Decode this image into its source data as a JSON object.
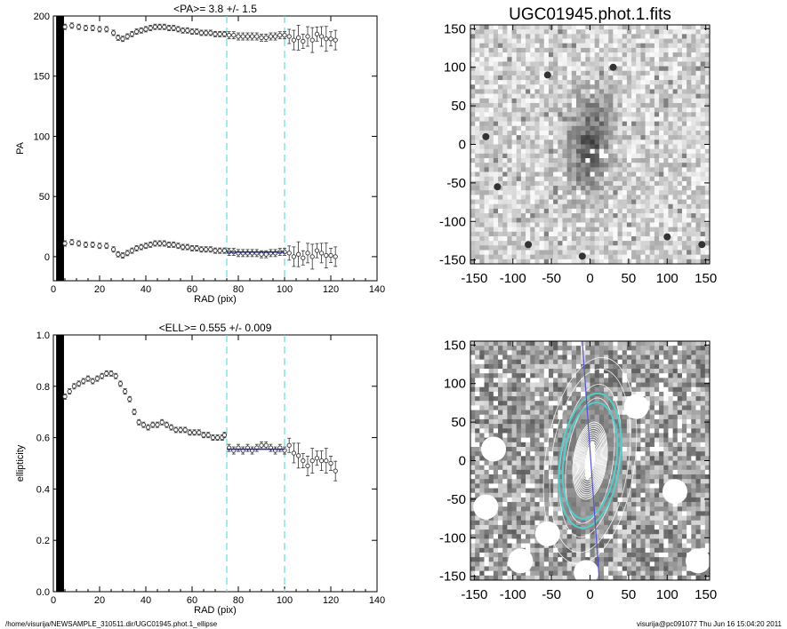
{
  "footer": {
    "path": "/home/visurija/NEWSAMPLE_310511.dir/UGC01945.phot.1_ellipse",
    "stamp": "visurija@pc091077  Thu Jun 16 15:04:20 2011"
  },
  "colors": {
    "fit_range": "#66dddd",
    "fit_line": "#2222aa",
    "contour_highlight": "#55cccc",
    "major_axis": "#5555cc",
    "points": "#333333"
  },
  "chart_data": [
    {
      "type": "scatter",
      "title": "<PA>=   3.8 +/-   1.5",
      "xlabel": "RAD (pix)",
      "ylabel": "PA",
      "xlim": [
        0,
        140
      ],
      "ylim": [
        -20,
        200
      ],
      "xticks": [
        "0",
        "20",
        "40",
        "60",
        "80",
        "100",
        "120",
        "140"
      ],
      "yticks": [
        "0",
        "50",
        "100",
        "150",
        "200"
      ],
      "fit_range": [
        75,
        100
      ],
      "fit_line": {
        "x": [
          75,
          100
        ],
        "y": [
          3.8,
          3.8
        ]
      },
      "series": [
        {
          "x": [
            5,
            8,
            11,
            14,
            17,
            20,
            23,
            26,
            28,
            30,
            32,
            34,
            36,
            38,
            40,
            42,
            44,
            46,
            48,
            50,
            52,
            54,
            56,
            58,
            60,
            62,
            64,
            66,
            68,
            70,
            72,
            74
          ],
          "y": [
            11,
            12,
            11,
            10,
            10,
            9,
            9,
            6,
            2,
            1,
            3,
            5,
            7,
            8,
            9,
            10,
            11,
            11,
            11,
            10,
            10,
            9,
            8,
            8,
            7,
            7,
            6,
            6,
            6,
            5,
            5,
            5
          ]
        },
        {
          "x": [
            76,
            78,
            80,
            82,
            84,
            86,
            88,
            90,
            92,
            94,
            96,
            98,
            100
          ],
          "y": [
            4,
            4,
            3,
            3,
            3,
            3,
            3,
            2,
            2,
            3,
            3,
            4,
            4
          ]
        },
        {
          "x": [
            102,
            104,
            106,
            108,
            110,
            112,
            114,
            116,
            118,
            120,
            122
          ],
          "y": [
            3,
            0,
            2,
            -1,
            3,
            0,
            5,
            3,
            1,
            1,
            0
          ]
        },
        {
          "x": [
            5,
            8,
            11,
            14,
            17,
            20,
            23,
            26,
            28,
            30,
            32,
            34,
            36,
            38,
            40,
            42,
            44,
            46,
            48,
            50,
            52,
            54,
            56,
            58,
            60,
            62,
            64,
            66,
            68,
            70,
            72,
            74,
            76,
            78,
            80,
            82,
            84,
            86,
            88,
            90,
            92,
            94,
            96,
            98,
            100,
            102,
            104,
            106,
            108,
            110,
            112,
            114,
            116,
            118,
            120,
            122
          ],
          "y": [
            191,
            192,
            191,
            190,
            190,
            189,
            189,
            186,
            182,
            181,
            183,
            185,
            187,
            188,
            189,
            190,
            191,
            191,
            191,
            190,
            190,
            189,
            188,
            188,
            187,
            187,
            186,
            186,
            186,
            185,
            185,
            185,
            184,
            184,
            183,
            183,
            183,
            183,
            183,
            182,
            182,
            183,
            183,
            184,
            184,
            183,
            180,
            182,
            179,
            183,
            180,
            185,
            183,
            181,
            181,
            180
          ]
        }
      ]
    },
    {
      "type": "scatter",
      "title": "<ELL>= 0.555 +/-  0.009",
      "xlabel": "RAD (pix)",
      "ylabel": "ellipticity",
      "xlim": [
        0,
        140
      ],
      "ylim": [
        0.0,
        1.0
      ],
      "xticks": [
        "0",
        "20",
        "40",
        "60",
        "80",
        "100",
        "120",
        "140"
      ],
      "yticks": [
        "0.0",
        "0.2",
        "0.4",
        "0.6",
        "0.8",
        "1.0"
      ],
      "fit_range": [
        75,
        100
      ],
      "fit_line": {
        "x": [
          75,
          100
        ],
        "y": [
          0.555,
          0.555
        ]
      },
      "series": [
        {
          "x": [
            5,
            7,
            9,
            11,
            13,
            15,
            17,
            19,
            21,
            23,
            25,
            27,
            29,
            31,
            33,
            35,
            37,
            39,
            41,
            43,
            45,
            47,
            49,
            51,
            53,
            55,
            57,
            59,
            61,
            63,
            65,
            67,
            69,
            71,
            73,
            74
          ],
          "y": [
            0.76,
            0.78,
            0.8,
            0.81,
            0.82,
            0.83,
            0.82,
            0.83,
            0.84,
            0.85,
            0.85,
            0.84,
            0.81,
            0.78,
            0.75,
            0.7,
            0.66,
            0.65,
            0.64,
            0.65,
            0.65,
            0.66,
            0.65,
            0.64,
            0.63,
            0.63,
            0.63,
            0.62,
            0.62,
            0.62,
            0.61,
            0.61,
            0.6,
            0.6,
            0.6,
            0.61
          ]
        },
        {
          "x": [
            76,
            78,
            80,
            82,
            84,
            86,
            88,
            90,
            92,
            94,
            96,
            98,
            100
          ],
          "y": [
            0.56,
            0.55,
            0.56,
            0.55,
            0.56,
            0.55,
            0.56,
            0.57,
            0.57,
            0.56,
            0.55,
            0.56,
            0.55
          ]
        },
        {
          "x": [
            102,
            104,
            106,
            108,
            110,
            112,
            114,
            116,
            118,
            120,
            122
          ],
          "y": [
            0.57,
            0.54,
            0.53,
            0.51,
            0.49,
            0.51,
            0.52,
            0.51,
            0.51,
            0.5,
            0.47
          ]
        }
      ]
    },
    {
      "type": "heatmap",
      "title": "UGC01945.phot.1.fits",
      "xlim": [
        -155,
        155
      ],
      "ylim": [
        -155,
        155
      ],
      "xticks": [
        "-150",
        "-100",
        "-50",
        "0",
        "50",
        "100",
        "150"
      ],
      "yticks": [
        "-150",
        "-100",
        "-50",
        "0",
        "50",
        "100",
        "150"
      ]
    },
    {
      "type": "heatmap",
      "title": "",
      "xlim": [
        -155,
        155
      ],
      "ylim": [
        -155,
        155
      ],
      "xticks": [
        "-150",
        "-100",
        "-50",
        "0",
        "50",
        "100",
        "150"
      ],
      "yticks": [
        "-150",
        "-100",
        "-50",
        "0",
        "50",
        "100",
        "150"
      ]
    }
  ]
}
